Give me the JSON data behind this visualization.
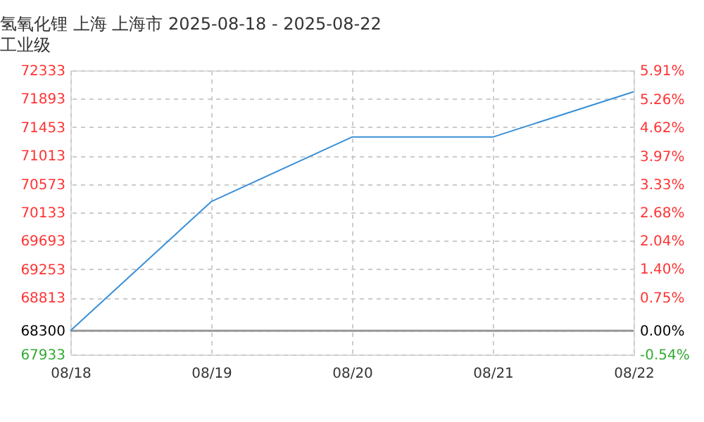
{
  "chart_data": {
    "type": "line",
    "title": "氢氧化锂 上海 上海市 2025-08-18 - 2025-08-22",
    "subtitle": "工业级",
    "categories": [
      "08/18",
      "08/19",
      "08/20",
      "08/21",
      "08/22"
    ],
    "series": [
      {
        "color": "#3a8fd6",
        "values": [
          68300,
          70300,
          71300,
          71300,
          72000
        ]
      }
    ],
    "ylim": [
      67933,
      72333
    ],
    "yticks": [
      67933,
      68300,
      68813,
      69253,
      69693,
      70133,
      70573,
      71013,
      71453,
      71893,
      72333
    ],
    "y2lim": [
      -0.54,
      5.91
    ],
    "y2ticks": [
      {
        "value": -0.54,
        "label": "-0.54%"
      },
      {
        "value": 0,
        "label": "0.00%"
      },
      {
        "value": 0.75,
        "label": "0.75%"
      },
      {
        "value": 1.4,
        "label": "1.40%"
      },
      {
        "value": 2.04,
        "label": "2.04%"
      },
      {
        "value": 2.68,
        "label": "2.68%"
      },
      {
        "value": 3.33,
        "label": "3.33%"
      },
      {
        "value": 3.97,
        "label": "3.97%"
      },
      {
        "value": 4.62,
        "label": "4.62%"
      },
      {
        "value": 5.26,
        "label": "5.26%"
      },
      {
        "value": 5.91,
        "label": "5.91%"
      }
    ],
    "ref_lines": [
      {
        "axis": "y",
        "value": 68300,
        "color": "#999999",
        "line_style": "solid"
      }
    ],
    "grid": true,
    "marker": "none",
    "line_style": "solid"
  }
}
